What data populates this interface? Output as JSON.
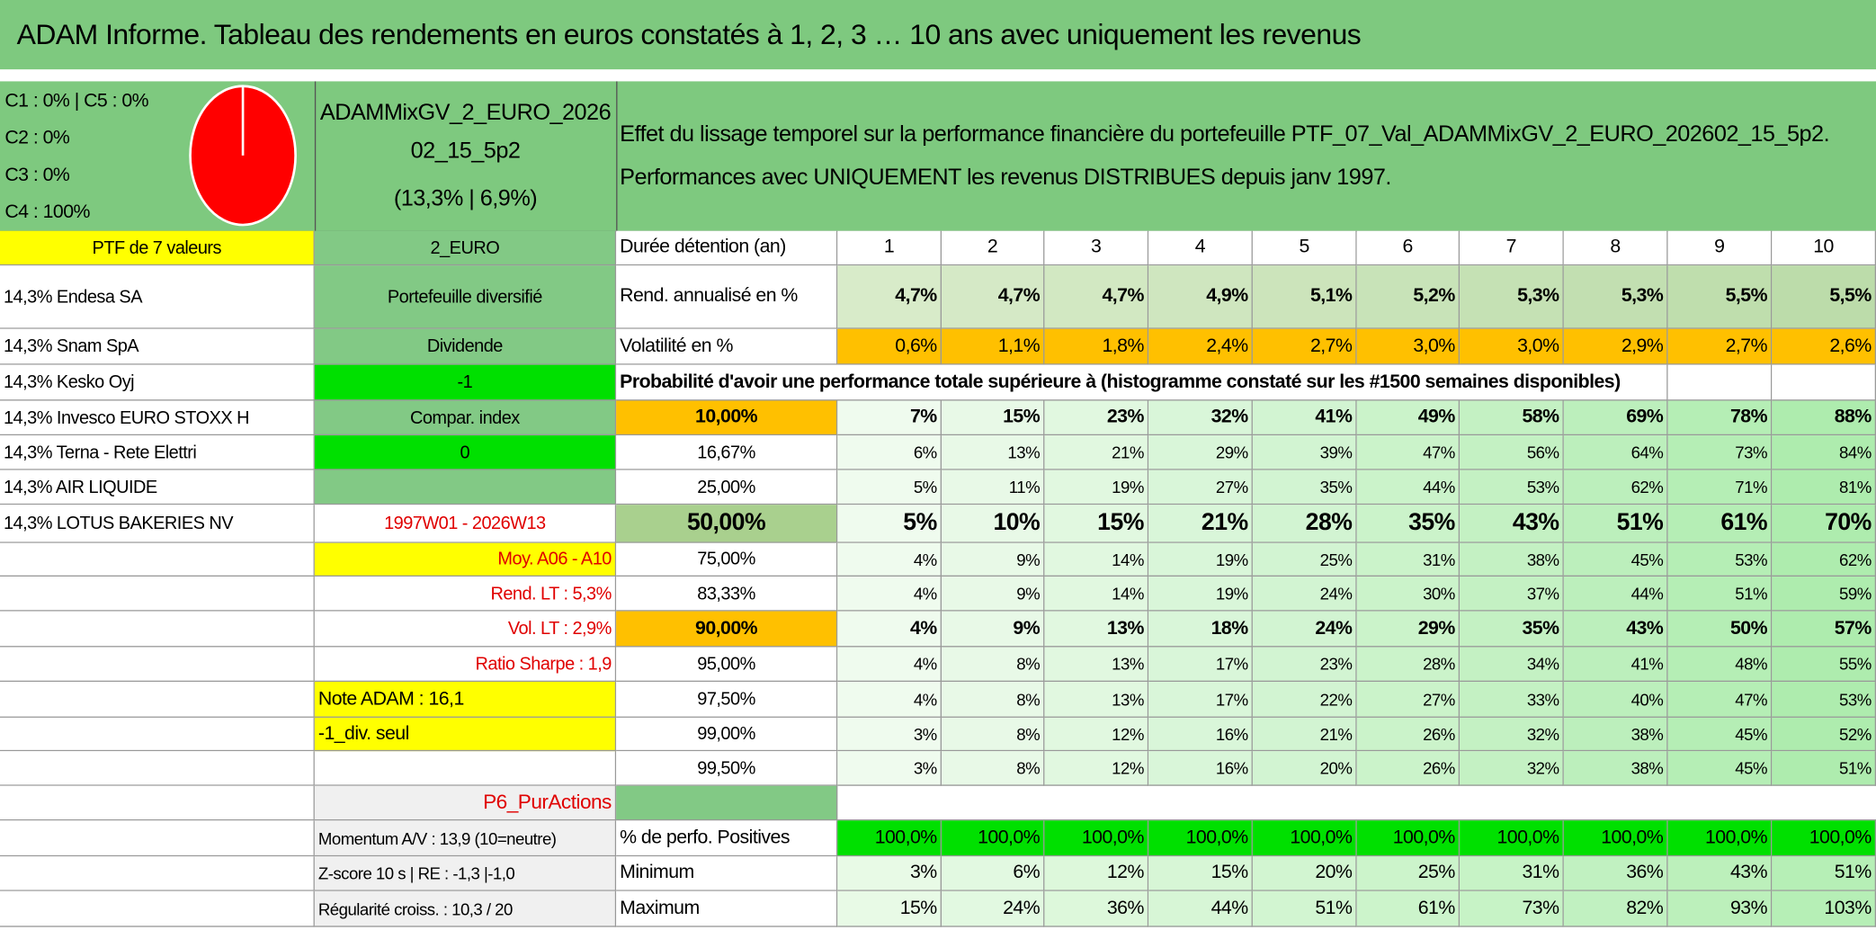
{
  "header": {
    "title": "ADAM Informe. Tableau des rendements en euros constatés à 1, 2, 3 … 10 ans avec uniquement les revenus"
  },
  "allocation": [
    "C1 : 0% | C5 : 0%",
    "C2 : 0%",
    "C3 : 0%",
    "C4 : 100%"
  ],
  "portfolio": {
    "name_lines": [
      "ADAMMixGV_2_EURO_2026",
      "02_15_5p2"
    ],
    "stats": "(13,3% | 6,9%)",
    "description": [
      "Effet du lissage temporel sur la performance financière du portefeuille PTF_07_Val_ADAMMixGV_2_EURO_202602_15_5p2.",
      "Performances avec UNIQUEMENT les revenus DISTRIBUES depuis janv 1997."
    ]
  },
  "holdings": {
    "title": "PTF de 7 valeurs",
    "items": [
      "14,3% Endesa SA",
      "14,3% Snam SpA",
      "14,3% Kesko Oyj",
      "14,3% Invesco EURO STOXX H",
      "14,3% Terna - Rete Elettri",
      "14,3% AIR LIQUIDE",
      "14,3% LOTUS BAKERIES NV"
    ]
  },
  "info": [
    "2_EURO",
    "Portefeuille diversifié",
    "Dividende",
    "-1",
    "Compar. index",
    "0",
    "1997W01 - 2026W13",
    "Moy. A06 - A10",
    "Rend. LT : 5,3%",
    "Vol. LT : 2,9%",
    "Ratio Sharpe : 1,9",
    "Note ADAM : 16,1",
    "-1_div. seul",
    "P6_PurActions",
    "Momentum A/V : 13,9 (10=neutre)",
    "Z-score 10 s | RE : -1,3 |-1,0",
    "Régularité croiss. : 10,3 / 20"
  ],
  "table": {
    "duration_label": "Durée détention (an)",
    "years": [
      1,
      2,
      3,
      4,
      5,
      6,
      7,
      8,
      9,
      10
    ],
    "return": {
      "label": "Rend. annualisé en %",
      "values": [
        "4,7%",
        "4,7%",
        "4,7%",
        "4,9%",
        "5,1%",
        "5,2%",
        "5,3%",
        "5,3%",
        "5,5%",
        "5,5%"
      ]
    },
    "volatility": {
      "label": "Volatilité en %",
      "values": [
        "0,6%",
        "1,1%",
        "1,8%",
        "2,4%",
        "2,7%",
        "3,0%",
        "3,0%",
        "2,9%",
        "2,7%",
        "2,6%"
      ]
    },
    "probability": {
      "title": "Probabilité d'avoir une performance totale supérieure à (histogramme constaté sur les #1500 semaines disponibles)",
      "rows": [
        {
          "threshold": "10,00%",
          "values": [
            "7%",
            "15%",
            "23%",
            "32%",
            "41%",
            "49%",
            "58%",
            "69%",
            "78%",
            "88%"
          ]
        },
        {
          "threshold": "16,67%",
          "values": [
            "6%",
            "13%",
            "21%",
            "29%",
            "39%",
            "47%",
            "56%",
            "64%",
            "73%",
            "84%"
          ]
        },
        {
          "threshold": "25,00%",
          "values": [
            "5%",
            "11%",
            "19%",
            "27%",
            "35%",
            "44%",
            "53%",
            "62%",
            "71%",
            "81%"
          ]
        },
        {
          "threshold": "50,00%",
          "values": [
            "5%",
            "10%",
            "15%",
            "21%",
            "28%",
            "35%",
            "43%",
            "51%",
            "61%",
            "70%"
          ]
        },
        {
          "threshold": "75,00%",
          "values": [
            "4%",
            "9%",
            "14%",
            "19%",
            "25%",
            "31%",
            "38%",
            "45%",
            "53%",
            "62%"
          ]
        },
        {
          "threshold": "83,33%",
          "values": [
            "4%",
            "9%",
            "14%",
            "19%",
            "24%",
            "30%",
            "37%",
            "44%",
            "51%",
            "59%"
          ]
        },
        {
          "threshold": "90,00%",
          "values": [
            "4%",
            "9%",
            "13%",
            "18%",
            "24%",
            "29%",
            "35%",
            "43%",
            "50%",
            "57%"
          ]
        },
        {
          "threshold": "95,00%",
          "values": [
            "4%",
            "8%",
            "13%",
            "17%",
            "23%",
            "28%",
            "34%",
            "41%",
            "48%",
            "55%"
          ]
        },
        {
          "threshold": "97,50%",
          "values": [
            "4%",
            "8%",
            "13%",
            "17%",
            "22%",
            "27%",
            "33%",
            "40%",
            "47%",
            "53%"
          ]
        },
        {
          "threshold": "99,00%",
          "values": [
            "3%",
            "8%",
            "12%",
            "16%",
            "21%",
            "26%",
            "32%",
            "38%",
            "45%",
            "52%"
          ]
        },
        {
          "threshold": "99,50%",
          "values": [
            "3%",
            "8%",
            "12%",
            "16%",
            "20%",
            "26%",
            "32%",
            "38%",
            "45%",
            "51%"
          ]
        }
      ]
    },
    "positive": {
      "label": "% de perfo. Positives",
      "values": [
        "100,0%",
        "100,0%",
        "100,0%",
        "100,0%",
        "100,0%",
        "100,0%",
        "100,0%",
        "100,0%",
        "100,0%",
        "100,0%"
      ]
    },
    "minimum": {
      "label": "Minimum",
      "values": [
        "3%",
        "6%",
        "12%",
        "15%",
        "20%",
        "25%",
        "31%",
        "36%",
        "43%",
        "51%"
      ]
    },
    "maximum": {
      "label": "Maximum",
      "values": [
        "15%",
        "24%",
        "36%",
        "44%",
        "51%",
        "61%",
        "73%",
        "82%",
        "93%",
        "103%"
      ]
    }
  }
}
